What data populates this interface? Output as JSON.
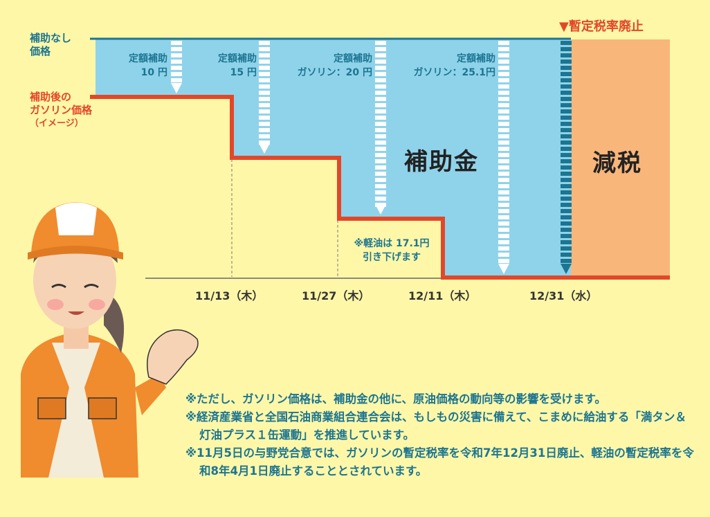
{
  "labels": {
    "unsubsidized_price": [
      "補助なし",
      "価格"
    ],
    "subsidized_price": [
      "補助後の",
      "ガソリン価格",
      "（イメージ）"
    ],
    "abolition": "▼暫定税率廃止",
    "subsidy_area": "補助金",
    "tax_cut_area": "減税",
    "diesel_note": [
      "※軽油は 17.1円",
      "引き下げます"
    ]
  },
  "subsidies": [
    {
      "line1": "定額補助",
      "line2": "10 円"
    },
    {
      "line1": "定額補助",
      "line2": "15 円"
    },
    {
      "line1": "定額補助",
      "line2": "ガソリン：20 円"
    },
    {
      "line1": "定額補助",
      "line2": "ガソリン：25.1円"
    }
  ],
  "dates": [
    "11/13（木）",
    "11/27（木）",
    "12/11（木）",
    "12/31（水）"
  ],
  "notes": [
    "※ただし、ガソリン価格は、補助金の他に、原油価格の動向等の影響を受けます。",
    "※経済産業省と全国石油商業組合連合会は、もしもの災害に備えて、こまめに給油する「満タン＆灯油プラス１缶運動」を推進しています。",
    "※11月5日の与野党合意では、ガソリンの暫定税率を令和7年12月31日廃止、軽油の暫定税率を令和8年4月1日廃止することとされています。"
  ],
  "colors": {
    "background": "#fff7a8",
    "subsidy": "#8fd3ea",
    "tax_cut": "#f8b67b",
    "price_line": "#e2472a",
    "base_line": "#1c7591"
  }
}
